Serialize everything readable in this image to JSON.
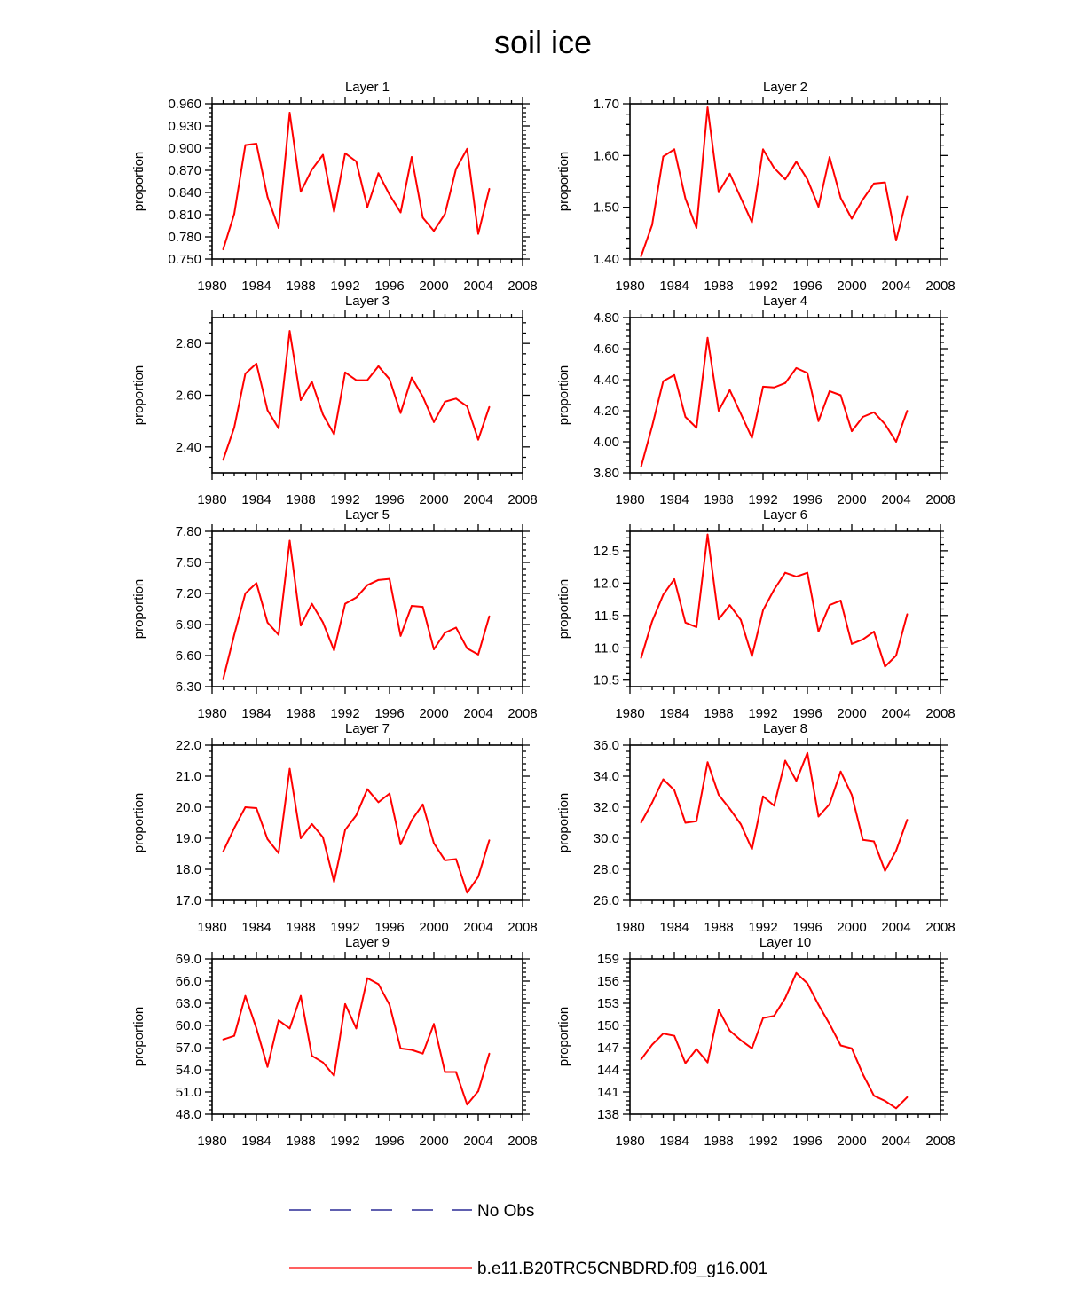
{
  "title": "soil ice",
  "colors": {
    "series": "#ff0000",
    "no_obs": "#000080",
    "axis": "#000000"
  },
  "legend": {
    "items": [
      {
        "label": "No Obs",
        "style": "dashed",
        "color": "#000080"
      },
      {
        "label": "b.e11.B20TRC5CNBDRD.f09_g16.001",
        "style": "solid",
        "color": "#ff0000"
      }
    ]
  },
  "chart_data": [
    {
      "type": "line",
      "title": "Layer 1",
      "xlabel": "",
      "ylabel": "proportion",
      "xlim": [
        1980,
        2008
      ],
      "ylim": [
        0.75,
        0.96
      ],
      "xticks": [
        1980,
        1984,
        1988,
        1992,
        1996,
        2000,
        2004,
        2008
      ],
      "yticks": [
        0.75,
        0.78,
        0.81,
        0.84,
        0.87,
        0.9,
        0.93,
        0.96
      ],
      "ytick_decimals": 3,
      "x": [
        1981,
        1982,
        1983,
        1984,
        1985,
        1986,
        1987,
        1988,
        1989,
        1990,
        1991,
        1992,
        1993,
        1994,
        1995,
        1996,
        1997,
        1998,
        1999,
        2000,
        2001,
        2002,
        2003,
        2004,
        2005
      ],
      "series": [
        {
          "name": "b.e11.B20TRC5CNBDRD.f09_g16.001",
          "values": [
            0.763,
            0.811,
            0.904,
            0.906,
            0.834,
            0.792,
            0.948,
            0.841,
            0.871,
            0.891,
            0.814,
            0.893,
            0.882,
            0.82,
            0.866,
            0.837,
            0.813,
            0.888,
            0.806,
            0.788,
            0.811,
            0.872,
            0.899,
            0.784,
            0.845
          ]
        }
      ]
    },
    {
      "type": "line",
      "title": "Layer 2",
      "xlabel": "",
      "ylabel": "proportion",
      "xlim": [
        1980,
        2008
      ],
      "ylim": [
        1.4,
        1.7
      ],
      "xticks": [
        1980,
        1984,
        1988,
        1992,
        1996,
        2000,
        2004,
        2008
      ],
      "yticks": [
        1.4,
        1.5,
        1.6,
        1.7
      ],
      "ytick_decimals": 2,
      "x": [
        1981,
        1982,
        1983,
        1984,
        1985,
        1986,
        1987,
        1988,
        1989,
        1990,
        1991,
        1992,
        1993,
        1994,
        1995,
        1996,
        1997,
        1998,
        1999,
        2000,
        2001,
        2002,
        2003,
        2004,
        2005
      ],
      "series": [
        {
          "name": "b.e11.B20TRC5CNBDRD.f09_g16.001",
          "values": [
            1.405,
            1.466,
            1.598,
            1.612,
            1.517,
            1.46,
            1.693,
            1.529,
            1.565,
            1.518,
            1.471,
            1.612,
            1.576,
            1.554,
            1.588,
            1.554,
            1.501,
            1.597,
            1.518,
            1.478,
            1.515,
            1.546,
            1.548,
            1.436,
            1.521
          ]
        }
      ]
    },
    {
      "type": "line",
      "title": "Layer 3",
      "xlabel": "",
      "ylabel": "proportion",
      "xlim": [
        1980,
        2008
      ],
      "ylim": [
        2.3,
        2.9
      ],
      "xticks": [
        1980,
        1984,
        1988,
        1992,
        1996,
        2000,
        2004,
        2008
      ],
      "yticks": [
        2.4,
        2.6,
        2.8
      ],
      "ytick_decimals": 2,
      "x": [
        1981,
        1982,
        1983,
        1984,
        1985,
        1986,
        1987,
        1988,
        1989,
        1990,
        1991,
        1992,
        1993,
        1994,
        1995,
        1996,
        1997,
        1998,
        1999,
        2000,
        2001,
        2002,
        2003,
        2004,
        2005
      ],
      "series": [
        {
          "name": "b.e11.B20TRC5CNBDRD.f09_g16.001",
          "values": [
            2.35,
            2.475,
            2.683,
            2.722,
            2.542,
            2.472,
            2.848,
            2.581,
            2.652,
            2.525,
            2.449,
            2.688,
            2.658,
            2.658,
            2.712,
            2.662,
            2.531,
            2.668,
            2.595,
            2.496,
            2.575,
            2.587,
            2.557,
            2.428,
            2.555
          ]
        }
      ]
    },
    {
      "type": "line",
      "title": "Layer 4",
      "xlabel": "",
      "ylabel": "proportion",
      "xlim": [
        1980,
        2008
      ],
      "ylim": [
        3.8,
        4.8
      ],
      "xticks": [
        1980,
        1984,
        1988,
        1992,
        1996,
        2000,
        2004,
        2008
      ],
      "yticks": [
        3.8,
        4.0,
        4.2,
        4.4,
        4.6,
        4.8
      ],
      "ytick_decimals": 2,
      "x": [
        1981,
        1982,
        1983,
        1984,
        1985,
        1986,
        1987,
        1988,
        1989,
        1990,
        1991,
        1992,
        1993,
        1994,
        1995,
        1996,
        1997,
        1998,
        1999,
        2000,
        2001,
        2002,
        2003,
        2004,
        2005
      ],
      "series": [
        {
          "name": "b.e11.B20TRC5CNBDRD.f09_g16.001",
          "values": [
            3.838,
            4.1,
            4.39,
            4.43,
            4.16,
            4.09,
            4.67,
            4.2,
            4.333,
            4.18,
            4.025,
            4.355,
            4.35,
            4.378,
            4.475,
            4.443,
            4.133,
            4.326,
            4.3,
            4.068,
            4.16,
            4.19,
            4.113,
            4.0,
            4.2
          ]
        }
      ]
    },
    {
      "type": "line",
      "title": "Layer 5",
      "xlabel": "",
      "ylabel": "proportion",
      "xlim": [
        1980,
        2008
      ],
      "ylim": [
        6.3,
        7.8
      ],
      "xticks": [
        1980,
        1984,
        1988,
        1992,
        1996,
        2000,
        2004,
        2008
      ],
      "yticks": [
        6.3,
        6.6,
        6.9,
        7.2,
        7.5,
        7.8
      ],
      "ytick_decimals": 2,
      "x": [
        1981,
        1982,
        1983,
        1984,
        1985,
        1986,
        1987,
        1988,
        1989,
        1990,
        1991,
        1992,
        1993,
        1994,
        1995,
        1996,
        1997,
        1998,
        1999,
        2000,
        2001,
        2002,
        2003,
        2004,
        2005
      ],
      "series": [
        {
          "name": "b.e11.B20TRC5CNBDRD.f09_g16.001",
          "values": [
            6.37,
            6.8,
            7.2,
            7.3,
            6.92,
            6.8,
            7.71,
            6.89,
            7.1,
            6.92,
            6.65,
            7.1,
            7.16,
            7.28,
            7.33,
            7.34,
            6.79,
            7.08,
            7.07,
            6.66,
            6.82,
            6.87,
            6.67,
            6.61,
            6.98
          ]
        }
      ]
    },
    {
      "type": "line",
      "title": "Layer 6",
      "xlabel": "",
      "ylabel": "proportion",
      "xlim": [
        1980,
        2008
      ],
      "ylim": [
        10.4,
        12.8
      ],
      "xticks": [
        1980,
        1984,
        1988,
        1992,
        1996,
        2000,
        2004,
        2008
      ],
      "yticks": [
        10.5,
        11.0,
        11.5,
        12.0,
        12.5
      ],
      "ytick_decimals": 1,
      "x": [
        1981,
        1982,
        1983,
        1984,
        1985,
        1986,
        1987,
        1988,
        1989,
        1990,
        1991,
        1992,
        1993,
        1994,
        1995,
        1996,
        1997,
        1998,
        1999,
        2000,
        2001,
        2002,
        2003,
        2004,
        2005
      ],
      "series": [
        {
          "name": "b.e11.B20TRC5CNBDRD.f09_g16.001",
          "values": [
            10.84,
            11.41,
            11.82,
            12.06,
            11.39,
            11.32,
            12.75,
            11.44,
            11.66,
            11.43,
            10.87,
            11.58,
            11.9,
            12.16,
            12.1,
            12.16,
            11.25,
            11.66,
            11.73,
            11.06,
            11.13,
            11.25,
            10.71,
            10.88,
            11.52
          ]
        }
      ]
    },
    {
      "type": "line",
      "title": "Layer 7",
      "xlabel": "",
      "ylabel": "proportion",
      "xlim": [
        1980,
        2008
      ],
      "ylim": [
        17.0,
        22.0
      ],
      "xticks": [
        1980,
        1984,
        1988,
        1992,
        1996,
        2000,
        2004,
        2008
      ],
      "yticks": [
        17.0,
        18.0,
        19.0,
        20.0,
        21.0,
        22.0
      ],
      "ytick_decimals": 1,
      "x": [
        1981,
        1982,
        1983,
        1984,
        1985,
        1986,
        1987,
        1988,
        1989,
        1990,
        1991,
        1992,
        1993,
        1994,
        1995,
        1996,
        1997,
        1998,
        1999,
        2000,
        2001,
        2002,
        2003,
        2004,
        2005
      ],
      "series": [
        {
          "name": "b.e11.B20TRC5CNBDRD.f09_g16.001",
          "values": [
            18.57,
            19.33,
            20.0,
            19.97,
            18.97,
            18.52,
            21.24,
            19.0,
            19.46,
            19.03,
            17.6,
            19.27,
            19.74,
            20.58,
            20.16,
            20.44,
            18.8,
            19.58,
            20.09,
            18.84,
            18.29,
            18.33,
            17.25,
            17.76,
            18.94
          ]
        }
      ]
    },
    {
      "type": "line",
      "title": "Layer 8",
      "xlabel": "",
      "ylabel": "proportion",
      "xlim": [
        1980,
        2008
      ],
      "ylim": [
        26.0,
        36.0
      ],
      "xticks": [
        1980,
        1984,
        1988,
        1992,
        1996,
        2000,
        2004,
        2008
      ],
      "yticks": [
        26.0,
        28.0,
        30.0,
        32.0,
        34.0,
        36.0
      ],
      "ytick_decimals": 1,
      "x": [
        1981,
        1982,
        1983,
        1984,
        1985,
        1986,
        1987,
        1988,
        1989,
        1990,
        1991,
        1992,
        1993,
        1994,
        1995,
        1996,
        1997,
        1998,
        1999,
        2000,
        2001,
        2002,
        2003,
        2004,
        2005
      ],
      "series": [
        {
          "name": "b.e11.B20TRC5CNBDRD.f09_g16.001",
          "values": [
            31.0,
            32.3,
            33.8,
            33.1,
            31.0,
            31.1,
            34.9,
            32.8,
            31.9,
            30.9,
            29.3,
            32.7,
            32.1,
            35.0,
            33.7,
            35.5,
            31.4,
            32.2,
            34.3,
            32.8,
            29.9,
            29.8,
            27.9,
            29.2,
            31.2
          ]
        }
      ]
    },
    {
      "type": "line",
      "title": "Layer 9",
      "xlabel": "",
      "ylabel": "proportion",
      "xlim": [
        1980,
        2008
      ],
      "ylim": [
        48.0,
        69.0
      ],
      "xticks": [
        1980,
        1984,
        1988,
        1992,
        1996,
        2000,
        2004,
        2008
      ],
      "yticks": [
        48.0,
        51.0,
        54.0,
        57.0,
        60.0,
        63.0,
        66.0,
        69.0
      ],
      "ytick_decimals": 1,
      "x": [
        1981,
        1982,
        1983,
        1984,
        1985,
        1986,
        1987,
        1988,
        1989,
        1990,
        1991,
        1992,
        1993,
        1994,
        1995,
        1996,
        1997,
        1998,
        1999,
        2000,
        2001,
        2002,
        2003,
        2004,
        2005
      ],
      "series": [
        {
          "name": "b.e11.B20TRC5CNBDRD.f09_g16.001",
          "values": [
            58.1,
            58.6,
            64.0,
            59.6,
            54.4,
            60.7,
            59.6,
            64.0,
            55.9,
            55.0,
            53.2,
            62.9,
            59.6,
            66.4,
            65.6,
            62.8,
            56.9,
            56.7,
            56.2,
            60.2,
            53.7,
            53.7,
            49.3,
            51.1,
            56.2
          ]
        }
      ]
    },
    {
      "type": "line",
      "title": "Layer 10",
      "xlabel": "",
      "ylabel": "proportion",
      "xlim": [
        1980,
        2008
      ],
      "ylim": [
        138,
        159
      ],
      "xticks": [
        1980,
        1984,
        1988,
        1992,
        1996,
        2000,
        2004,
        2008
      ],
      "yticks": [
        138,
        141,
        144,
        147,
        150,
        153,
        156,
        159
      ],
      "ytick_decimals": 0,
      "x": [
        1981,
        1982,
        1983,
        1984,
        1985,
        1986,
        1987,
        1988,
        1989,
        1990,
        1991,
        1992,
        1993,
        1994,
        1995,
        1996,
        1997,
        1998,
        1999,
        2000,
        2001,
        2002,
        2003,
        2004,
        2005
      ],
      "series": [
        {
          "name": "b.e11.B20TRC5CNBDRD.f09_g16.001",
          "values": [
            145.4,
            147.4,
            148.9,
            148.6,
            144.9,
            146.8,
            145.0,
            152.1,
            149.3,
            148.0,
            146.9,
            151.0,
            151.3,
            153.7,
            157.1,
            155.7,
            152.8,
            150.2,
            147.3,
            146.9,
            143.4,
            140.5,
            139.8,
            138.8,
            140.3
          ]
        }
      ]
    }
  ]
}
